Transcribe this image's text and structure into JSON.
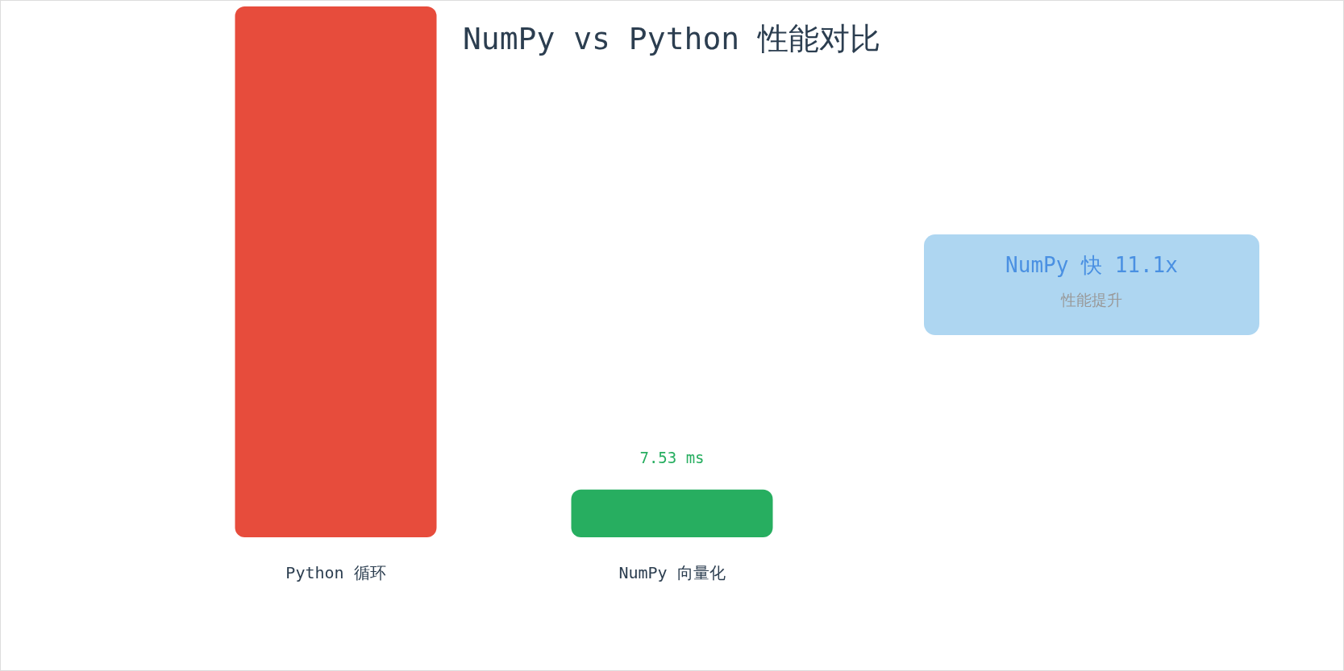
{
  "chart_data": {
    "type": "bar",
    "title": "NumPy vs Python 性能对比",
    "categories": [
      "Python 循环",
      "NumPy 向量化"
    ],
    "values": [
      83.6,
      7.53
    ],
    "colors": [
      "#e74c3c",
      "#27ae60"
    ],
    "value_labels": [
      null,
      "7.53 ms"
    ],
    "annotations": [
      "NumPy 快 11.1x",
      "性能提升"
    ]
  }
}
